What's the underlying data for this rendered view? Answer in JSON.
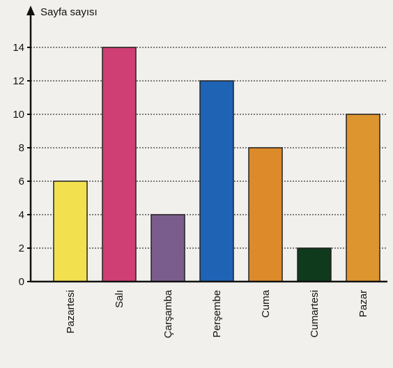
{
  "chart_data": {
    "type": "bar",
    "ylabel": "Sayfa sayısı",
    "xlabel": "",
    "categories": [
      "Pazartesi",
      "Salı",
      "Çarşamba",
      "Perşembe",
      "Cuma",
      "Cumartesi",
      "Pazar"
    ],
    "values": [
      6,
      14,
      4,
      12,
      8,
      2,
      10
    ],
    "bar_colors": [
      "#f2e04f",
      "#cf3f74",
      "#7b5d8d",
      "#1f63b5",
      "#dc8a2a",
      "#0f3a1c",
      "#dc952f"
    ],
    "ylim": [
      0,
      15
    ],
    "yticks": [
      "0",
      "2",
      "4",
      "6",
      "8",
      "10",
      "12",
      "14"
    ],
    "grid": true
  }
}
